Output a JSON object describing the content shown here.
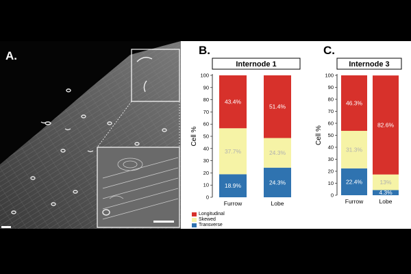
{
  "panels": {
    "a_label": "A.",
    "b_label": "B.",
    "c_label": "C."
  },
  "legend": {
    "items": [
      {
        "name": "Longitudinal",
        "color": "#d7312b"
      },
      {
        "name": "Skewed",
        "color": "#f6f3a6"
      },
      {
        "name": "Transverse",
        "color": "#2f73b0"
      }
    ]
  },
  "colors": {
    "longitudinal": "#d7312b",
    "skewed": "#f6f3a6",
    "transverse": "#2f73b0",
    "skewed_label": "#b0b0b0"
  },
  "chart_data": [
    {
      "type": "bar",
      "stacked": true,
      "title": "Internode 1",
      "ylabel": "Cell %",
      "ylim": [
        0,
        100
      ],
      "yticks": [
        0,
        10,
        20,
        30,
        40,
        50,
        60,
        70,
        80,
        90,
        100
      ],
      "categories": [
        "Furrow",
        "Lobe"
      ],
      "series": [
        {
          "name": "Transverse",
          "values": [
            18.9,
            24.3
          ],
          "labels": [
            "18.9%",
            "24.3%"
          ]
        },
        {
          "name": "Skewed",
          "values": [
            37.7,
            24.3
          ],
          "labels": [
            "37.7%",
            "24.3%"
          ]
        },
        {
          "name": "Longitudinal",
          "values": [
            43.4,
            51.4
          ],
          "labels": [
            "43.4%",
            "51.4%"
          ]
        }
      ]
    },
    {
      "type": "bar",
      "stacked": true,
      "title": "Internode 3",
      "ylabel": "Cell %",
      "ylim": [
        0,
        100
      ],
      "yticks": [
        0,
        10,
        20,
        30,
        40,
        50,
        60,
        70,
        80,
        90,
        100
      ],
      "categories": [
        "Furrow",
        "Lobe"
      ],
      "series": [
        {
          "name": "Transverse",
          "values": [
            22.4,
            4.3
          ],
          "labels": [
            "22.4%",
            "4.3%"
          ]
        },
        {
          "name": "Skewed",
          "values": [
            31.3,
            13.0
          ],
          "labels": [
            "31.3%",
            "13%"
          ]
        },
        {
          "name": "Longitudinal",
          "values": [
            46.3,
            82.6
          ],
          "labels": [
            "46.3%",
            "82.6%"
          ]
        }
      ]
    }
  ]
}
